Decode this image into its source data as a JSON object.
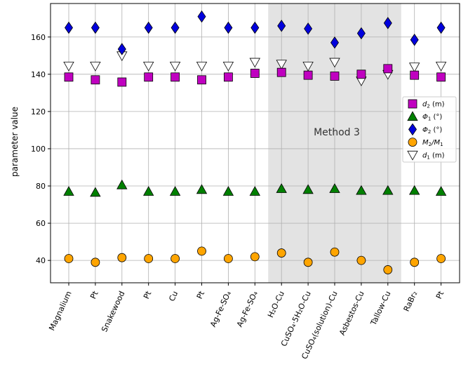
{
  "chart_data": {
    "type": "scatter",
    "ylabel": "parameter value",
    "ylim": [
      28,
      178
    ],
    "yticks": [
      40,
      60,
      80,
      100,
      120,
      140,
      160
    ],
    "grid": true,
    "legend_position": "right",
    "categories": [
      "Magnalium",
      "Pt",
      "Snakewood",
      "Pt",
      "Cu",
      "Pt",
      "Ag-Fe-SO₄",
      "Ag-Fe-SO₄",
      "H₂O-Cu",
      "CuSO₄·5H₂O-Cu",
      "CuSO₄(solution)-Cu",
      "Asbestos-Cu",
      "Tallow-Cu",
      "RaBr₂",
      "Pt"
    ],
    "highlight": {
      "from_category": 8,
      "to_category": 12,
      "label": "Method 3",
      "color": "#e3e3e3"
    },
    "series": [
      {
        "name": "d2 (m)",
        "symbol": "square",
        "color": "#c000c0",
        "values": [
          138.5,
          137,
          135.8,
          138.5,
          138.5,
          137,
          138.5,
          140.5,
          141,
          139.5,
          139,
          140,
          143,
          139.5,
          138.5
        ]
      },
      {
        "name": "Φ1 (°)",
        "symbol": "triangle-up",
        "color": "#008000",
        "values": [
          77,
          76.5,
          80.5,
          77,
          77,
          78,
          77,
          77,
          78.5,
          78,
          78.5,
          77.5,
          77.5,
          77.5,
          77
        ]
      },
      {
        "name": "Φ2 (°)",
        "symbol": "diamond",
        "color": "#0000dd",
        "values": [
          165,
          165,
          153.5,
          165,
          165,
          171,
          165,
          165,
          166,
          164.5,
          157,
          162,
          167.5,
          158.5,
          165
        ]
      },
      {
        "name": "M2/M1",
        "symbol": "circle",
        "color": "#ffa500",
        "values": [
          41,
          39,
          41.5,
          41,
          41,
          45,
          41,
          42,
          44,
          39,
          44.5,
          40,
          35,
          39,
          41
        ]
      },
      {
        "name": "d1 (m)",
        "symbol": "triangle-down",
        "color": "#ffffff",
        "values": [
          144.5,
          144.5,
          150,
          144.5,
          144.5,
          144.5,
          144.5,
          146.5,
          145.5,
          144.5,
          146.5,
          136.5,
          140,
          144,
          144.5
        ]
      }
    ],
    "legend": [
      {
        "main": "d",
        "sub": "2",
        "rest": " (m)"
      },
      {
        "main": "Φ",
        "sub": "1",
        "rest": " (°)"
      },
      {
        "main": "Φ",
        "sub": "2",
        "rest": " (°)"
      },
      {
        "main": "M",
        "sub": "2",
        "rest": "/M",
        "sub2": "1"
      },
      {
        "main": "d",
        "sub": "1",
        "rest": " (m)"
      }
    ]
  }
}
